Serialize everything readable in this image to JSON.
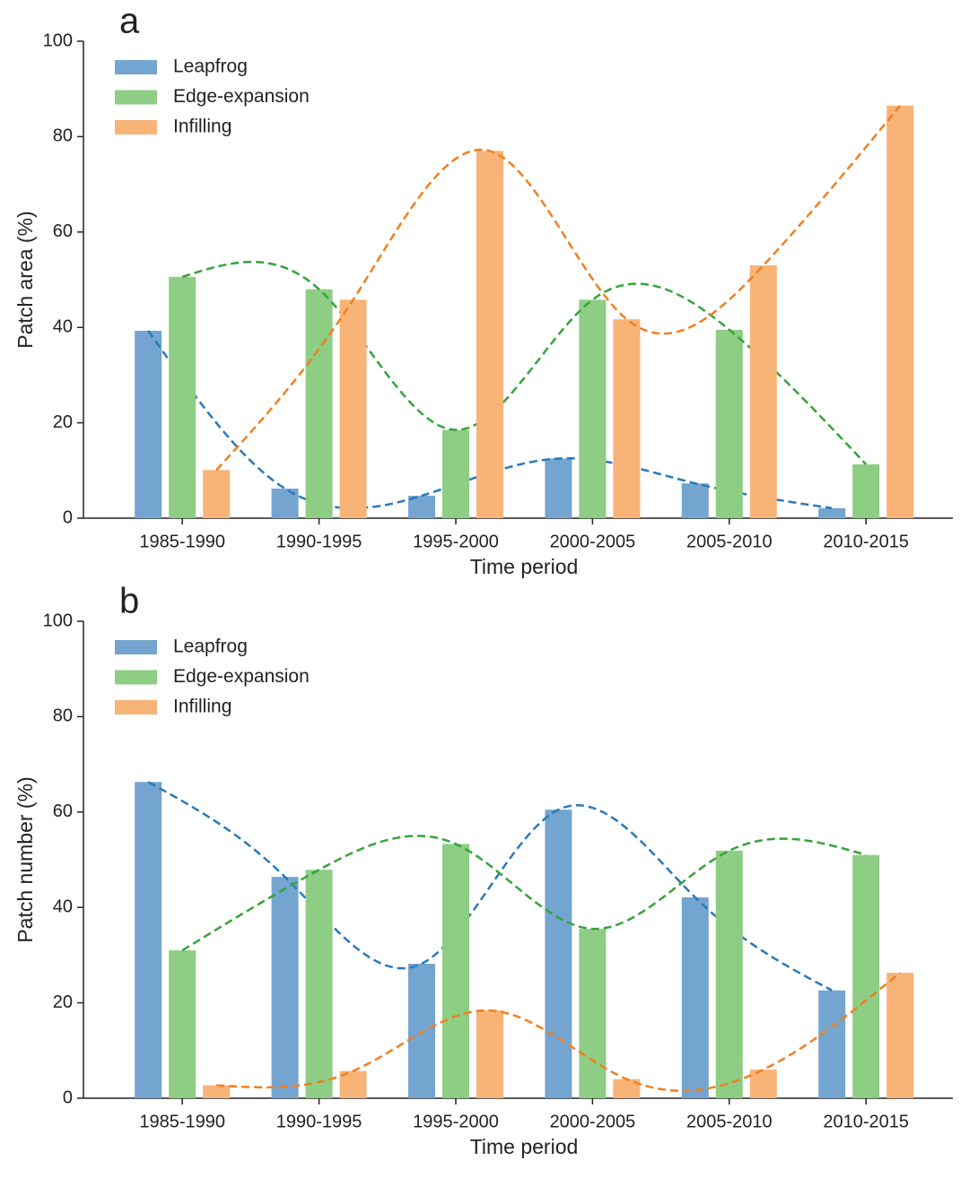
{
  "chart_data": [
    {
      "type": "bar",
      "panel_label": "a",
      "x_label": "Time period",
      "y_label": "Patch area (%)",
      "categories": [
        "1985-1990",
        "1990-1995",
        "1995-2000",
        "2000-2005",
        "2005-2010",
        "2010-2015"
      ],
      "series": [
        {
          "name": "Leapfrog",
          "color": "#73a5d0",
          "line_color": "#2b79b8",
          "values": [
            39.3,
            6.2,
            4.7,
            12.5,
            7.3,
            2.1
          ]
        },
        {
          "name": "Edge-expansion",
          "color": "#8ecd84",
          "line_color": "#36a33a",
          "values": [
            50.6,
            48.0,
            18.5,
            45.8,
            39.5,
            11.3
          ]
        },
        {
          "name": "Infilling",
          "color": "#f8b377",
          "line_color": "#f07f1f",
          "values": [
            10.1,
            45.8,
            77.0,
            41.7,
            53.0,
            86.5
          ]
        }
      ],
      "ylim": [
        0,
        100
      ],
      "yticks": [
        0,
        20,
        40,
        60,
        80,
        100
      ],
      "legend": "upper left",
      "smooth_trend": true
    },
    {
      "type": "bar",
      "panel_label": "b",
      "x_label": "Time period",
      "y_label": "Patch number (%)",
      "categories": [
        "1985-1990",
        "1990-1995",
        "1995-2000",
        "2000-2005",
        "2005-2010",
        "2010-2015"
      ],
      "series": [
        {
          "name": "Leapfrog",
          "color": "#73a5d0",
          "line_color": "#2b79b8",
          "values": [
            66.3,
            46.4,
            28.2,
            60.5,
            42.1,
            22.6
          ]
        },
        {
          "name": "Edge-expansion",
          "color": "#8ecd84",
          "line_color": "#36a33a",
          "values": [
            31.0,
            47.9,
            53.3,
            35.5,
            51.9,
            51.0
          ]
        },
        {
          "name": "Infilling",
          "color": "#f8b377",
          "line_color": "#f07f1f",
          "values": [
            2.7,
            5.7,
            18.4,
            4.0,
            6.0,
            26.3
          ]
        }
      ],
      "ylim": [
        0,
        100
      ],
      "yticks": [
        0,
        20,
        40,
        60,
        80,
        100
      ],
      "legend": "upper left",
      "smooth_trend": true
    }
  ]
}
